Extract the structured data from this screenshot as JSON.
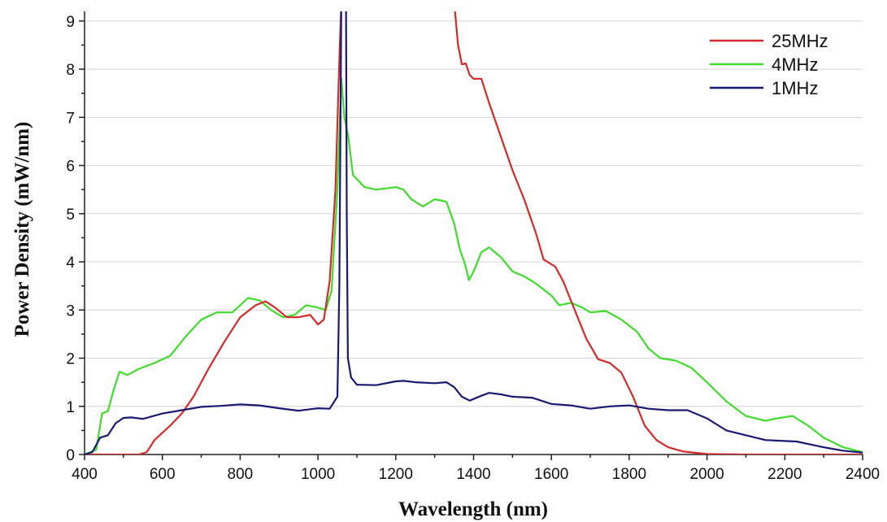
{
  "chart_data": {
    "type": "line",
    "title": "",
    "xlabel": "Wavelength (nm)",
    "ylabel": "Power Density (mW/nm)",
    "xlim": [
      400,
      2400
    ],
    "ylim": [
      0,
      9.2
    ],
    "grid": true,
    "legend_position": "top-right",
    "x_ticks": [
      400,
      600,
      800,
      1000,
      1200,
      1400,
      1600,
      1800,
      2000,
      2200,
      2400
    ],
    "y_ticks": [
      0,
      1,
      2,
      3,
      4,
      5,
      6,
      7,
      8,
      9
    ],
    "series": [
      {
        "name": "25MHz",
        "color": "#d42a2a",
        "points": [
          [
            400,
            0
          ],
          [
            540,
            0
          ],
          [
            560,
            0.05
          ],
          [
            580,
            0.3
          ],
          [
            600,
            0.45
          ],
          [
            620,
            0.6
          ],
          [
            650,
            0.85
          ],
          [
            680,
            1.2
          ],
          [
            720,
            1.8
          ],
          [
            760,
            2.35
          ],
          [
            800,
            2.85
          ],
          [
            840,
            3.1
          ],
          [
            865,
            3.18
          ],
          [
            890,
            3.05
          ],
          [
            920,
            2.85
          ],
          [
            950,
            2.85
          ],
          [
            980,
            2.9
          ],
          [
            1000,
            2.7
          ],
          [
            1015,
            2.8
          ],
          [
            1030,
            3.6
          ],
          [
            1045,
            5.5
          ],
          [
            1055,
            8.2
          ],
          [
            1060,
            9.4
          ],
          [
            1350,
            9.4
          ],
          [
            1360,
            8.5
          ],
          [
            1370,
            8.1
          ],
          [
            1380,
            8.12
          ],
          [
            1390,
            7.88
          ],
          [
            1400,
            7.8
          ],
          [
            1420,
            7.8
          ],
          [
            1440,
            7.3
          ],
          [
            1470,
            6.6
          ],
          [
            1500,
            5.9
          ],
          [
            1530,
            5.3
          ],
          [
            1560,
            4.6
          ],
          [
            1580,
            4.05
          ],
          [
            1610,
            3.9
          ],
          [
            1630,
            3.6
          ],
          [
            1660,
            3.0
          ],
          [
            1690,
            2.4
          ],
          [
            1720,
            1.98
          ],
          [
            1750,
            1.9
          ],
          [
            1780,
            1.7
          ],
          [
            1810,
            1.2
          ],
          [
            1840,
            0.6
          ],
          [
            1870,
            0.3
          ],
          [
            1900,
            0.15
          ],
          [
            1940,
            0.06
          ],
          [
            2000,
            0.01
          ],
          [
            2100,
            0
          ],
          [
            2400,
            0
          ]
        ]
      },
      {
        "name": "4MHz",
        "color": "#3fdc2c",
        "points": [
          [
            400,
            0
          ],
          [
            430,
            0.1
          ],
          [
            445,
            0.85
          ],
          [
            460,
            0.9
          ],
          [
            475,
            1.35
          ],
          [
            490,
            1.72
          ],
          [
            510,
            1.65
          ],
          [
            540,
            1.78
          ],
          [
            580,
            1.9
          ],
          [
            620,
            2.05
          ],
          [
            660,
            2.45
          ],
          [
            700,
            2.8
          ],
          [
            740,
            2.95
          ],
          [
            780,
            2.95
          ],
          [
            800,
            3.1
          ],
          [
            820,
            3.25
          ],
          [
            850,
            3.2
          ],
          [
            880,
            3.0
          ],
          [
            910,
            2.85
          ],
          [
            940,
            2.9
          ],
          [
            970,
            3.1
          ],
          [
            1000,
            3.05
          ],
          [
            1020,
            3.0
          ],
          [
            1035,
            3.4
          ],
          [
            1050,
            5.5
          ],
          [
            1060,
            7.8
          ],
          [
            1068,
            7.0
          ],
          [
            1078,
            6.6
          ],
          [
            1090,
            5.8
          ],
          [
            1120,
            5.55
          ],
          [
            1150,
            5.5
          ],
          [
            1200,
            5.55
          ],
          [
            1220,
            5.5
          ],
          [
            1240,
            5.3
          ],
          [
            1270,
            5.15
          ],
          [
            1300,
            5.3
          ],
          [
            1330,
            5.25
          ],
          [
            1350,
            4.8
          ],
          [
            1365,
            4.25
          ],
          [
            1378,
            3.95
          ],
          [
            1388,
            3.62
          ],
          [
            1400,
            3.8
          ],
          [
            1420,
            4.2
          ],
          [
            1440,
            4.3
          ],
          [
            1470,
            4.1
          ],
          [
            1500,
            3.8
          ],
          [
            1530,
            3.7
          ],
          [
            1560,
            3.55
          ],
          [
            1600,
            3.3
          ],
          [
            1620,
            3.1
          ],
          [
            1650,
            3.15
          ],
          [
            1680,
            3.05
          ],
          [
            1700,
            2.95
          ],
          [
            1740,
            2.98
          ],
          [
            1780,
            2.8
          ],
          [
            1820,
            2.55
          ],
          [
            1850,
            2.2
          ],
          [
            1880,
            2.0
          ],
          [
            1920,
            1.95
          ],
          [
            1960,
            1.8
          ],
          [
            2000,
            1.5
          ],
          [
            2050,
            1.1
          ],
          [
            2100,
            0.8
          ],
          [
            2150,
            0.7
          ],
          [
            2180,
            0.75
          ],
          [
            2220,
            0.8
          ],
          [
            2260,
            0.6
          ],
          [
            2300,
            0.35
          ],
          [
            2350,
            0.15
          ],
          [
            2400,
            0.05
          ]
        ]
      },
      {
        "name": "1MHz",
        "color": "#1a1a72",
        "points": [
          [
            400,
            0
          ],
          [
            420,
            0.05
          ],
          [
            440,
            0.35
          ],
          [
            460,
            0.4
          ],
          [
            480,
            0.65
          ],
          [
            500,
            0.76
          ],
          [
            520,
            0.77
          ],
          [
            550,
            0.74
          ],
          [
            600,
            0.85
          ],
          [
            650,
            0.92
          ],
          [
            700,
            0.99
          ],
          [
            750,
            1.01
          ],
          [
            800,
            1.04
          ],
          [
            850,
            1.02
          ],
          [
            900,
            0.96
          ],
          [
            950,
            0.91
          ],
          [
            980,
            0.94
          ],
          [
            1000,
            0.96
          ],
          [
            1030,
            0.95
          ],
          [
            1050,
            1.2
          ],
          [
            1055,
            3.5
          ],
          [
            1060,
            9.4
          ],
          [
            1072,
            9.4
          ],
          [
            1074,
            5.0
          ],
          [
            1077,
            2.0
          ],
          [
            1085,
            1.6
          ],
          [
            1100,
            1.45
          ],
          [
            1150,
            1.44
          ],
          [
            1200,
            1.52
          ],
          [
            1220,
            1.53
          ],
          [
            1250,
            1.5
          ],
          [
            1300,
            1.48
          ],
          [
            1330,
            1.5
          ],
          [
            1350,
            1.4
          ],
          [
            1370,
            1.2
          ],
          [
            1390,
            1.12
          ],
          [
            1420,
            1.22
          ],
          [
            1440,
            1.28
          ],
          [
            1470,
            1.25
          ],
          [
            1500,
            1.2
          ],
          [
            1550,
            1.18
          ],
          [
            1600,
            1.05
          ],
          [
            1650,
            1.02
          ],
          [
            1700,
            0.95
          ],
          [
            1750,
            1.0
          ],
          [
            1800,
            1.02
          ],
          [
            1850,
            0.95
          ],
          [
            1900,
            0.92
          ],
          [
            1950,
            0.92
          ],
          [
            2000,
            0.75
          ],
          [
            2050,
            0.5
          ],
          [
            2100,
            0.4
          ],
          [
            2150,
            0.3
          ],
          [
            2200,
            0.28
          ],
          [
            2230,
            0.27
          ],
          [
            2300,
            0.15
          ],
          [
            2350,
            0.08
          ],
          [
            2400,
            0.04
          ]
        ]
      }
    ]
  }
}
